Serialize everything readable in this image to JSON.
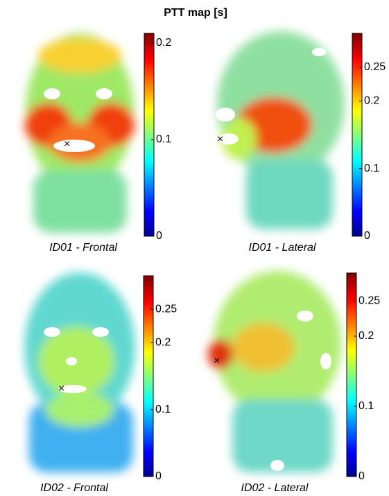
{
  "title": "PTT map [s]",
  "panels": [
    {
      "caption": "ID01 - Frontal",
      "colorbar": {
        "lim": [
          0,
          0.21
        ],
        "ticks": [
          0,
          0.1,
          0.2
        ]
      }
    },
    {
      "caption": "ID01 - Lateral",
      "colorbar": {
        "lim": [
          0,
          0.3
        ],
        "ticks": [
          0,
          0.1,
          0.2,
          0.25
        ]
      }
    },
    {
      "caption": "ID02 - Frontal",
      "colorbar": {
        "lim": [
          0,
          0.3
        ],
        "ticks": [
          0,
          0.1,
          0.2,
          0.25
        ]
      }
    },
    {
      "caption": "ID02 - Lateral",
      "colorbar": {
        "lim": [
          0,
          0.29
        ],
        "ticks": [
          0,
          0.1,
          0.2,
          0.25
        ]
      }
    }
  ]
}
